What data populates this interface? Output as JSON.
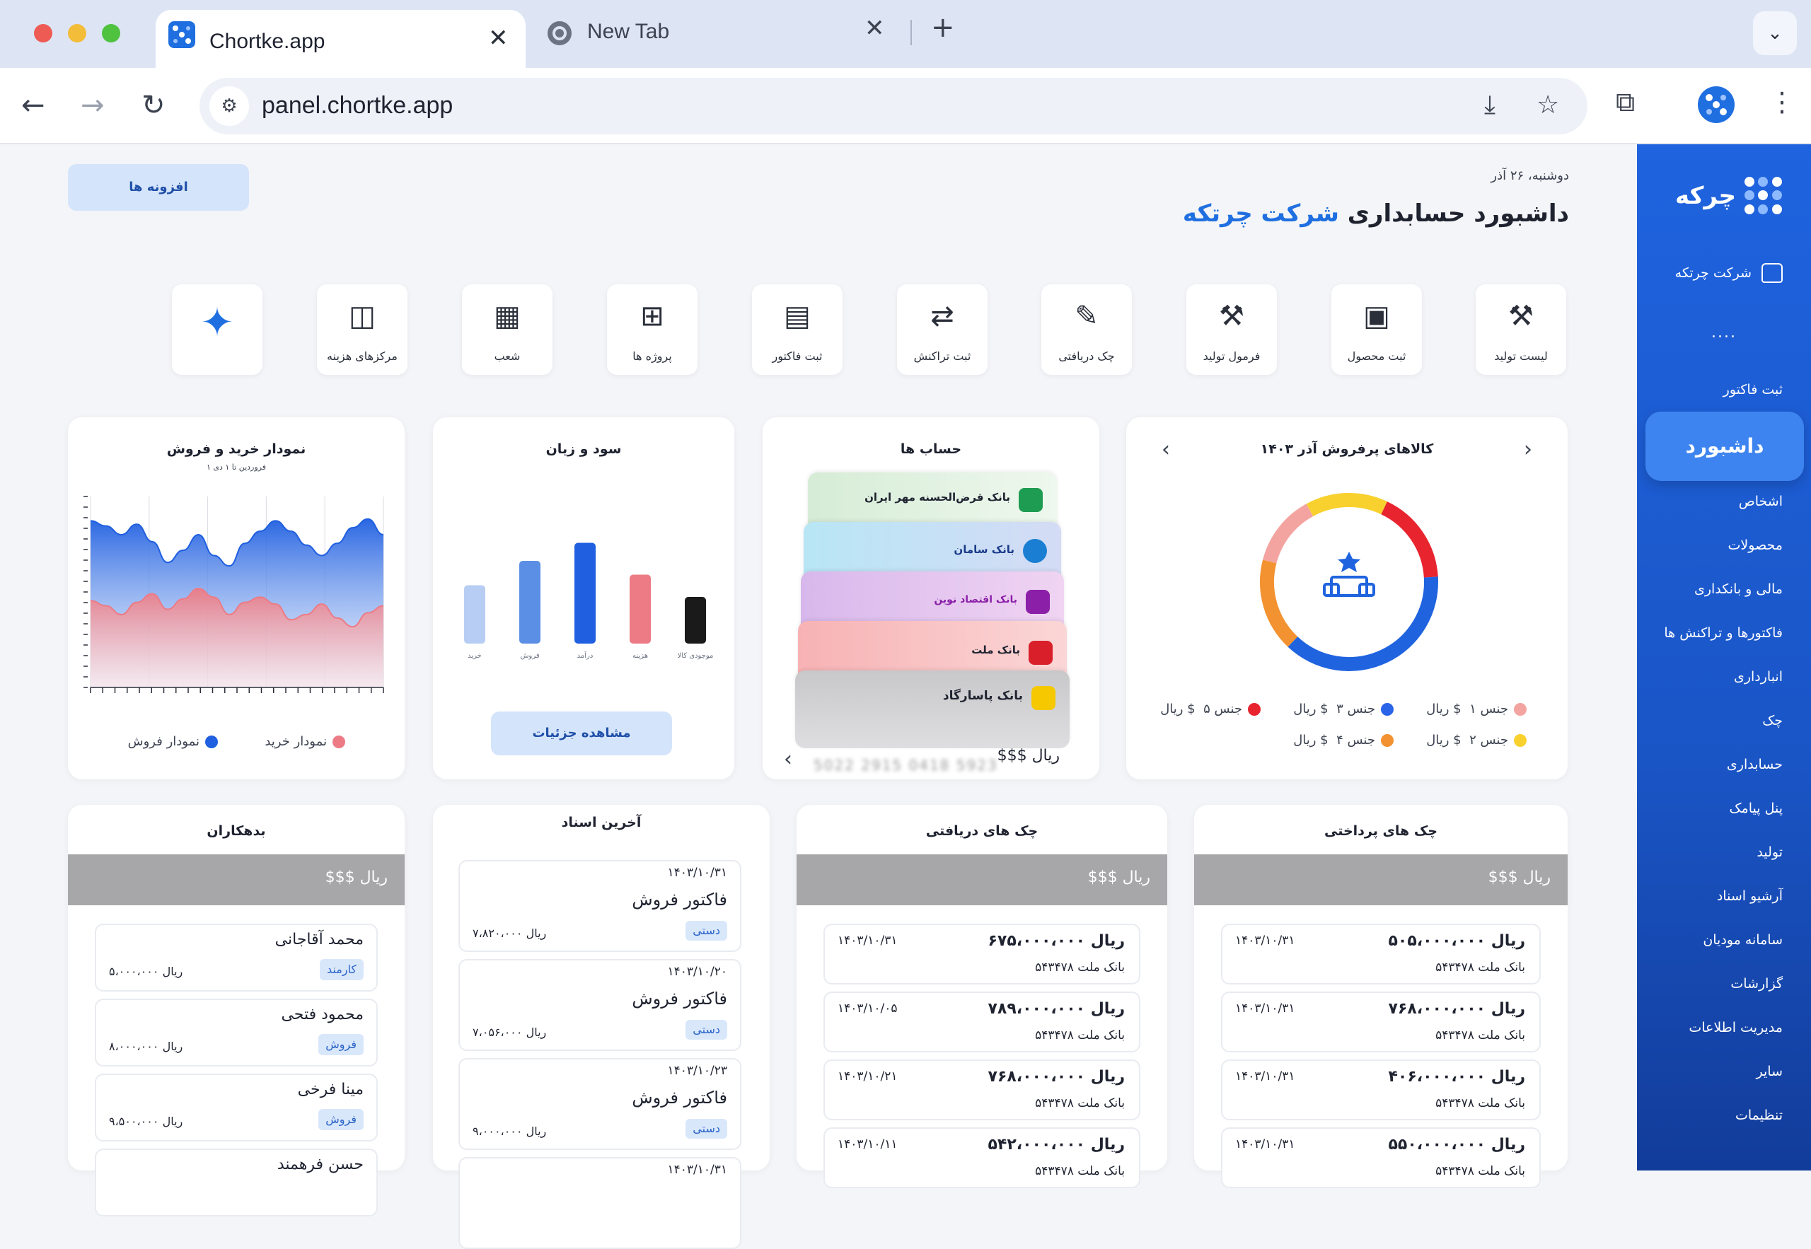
{
  "browser": {
    "active_tab_title": "Chortke.app",
    "inactive_tab_title": "New Tab",
    "url": "panel.chortke.app"
  },
  "sidebar": {
    "logo_text": "چرکه",
    "company": "شرکت چرتکه",
    "more": "....",
    "items": [
      "ثبت فاکتور",
      "داشبورد",
      "اشخاص",
      "محصولات",
      "مالی و بانکداری",
      "فاکتورها و تراکنش ها",
      "انبارداری",
      "چک",
      "حسابداری",
      "پنل پیامک",
      "تولید",
      "آرشیو اسناد",
      "سامانه مودیان",
      "گزارشات",
      "مدیریت اطلاعات",
      "سایر",
      "تنظیمات"
    ]
  },
  "header": {
    "date": "دوشنبه، ۲۶ آذر",
    "title_prefix": "داشبورد حسابداری",
    "title_company": "شرکت چرتکه",
    "addons_button": "افزونه ها"
  },
  "quick_actions": [
    "لیست تولید",
    "ثبت محصول",
    "فرمول تولید",
    "چک دریافتی",
    "ثبت تراکنش",
    "ثبت فاکتور",
    "پروژه ها",
    "شعب",
    "مرکزهای هزینه"
  ],
  "bestsellers": {
    "title": "کالاهای پرفروش آذر ۱۴۰۳",
    "legend": [
      {
        "label": "جنس ۱",
        "value": "$ ریال",
        "color": "#f4a4a0"
      },
      {
        "label": "جنس ۳",
        "value": "$ ریال",
        "color": "#2a64e8"
      },
      {
        "label": "جنس ۵",
        "value": "$ ریال",
        "color": "#e8242f"
      },
      {
        "label": "جنس ۲",
        "value": "$ ریال",
        "color": "#f9d12e"
      },
      {
        "label": "جنس ۴",
        "value": "$ ریال",
        "color": "#f39230"
      }
    ]
  },
  "accounts": {
    "title": "حساب ها",
    "banks": [
      "بانک قرض‌الحسنه مهر ایران",
      "بانک سامان",
      "بانک اقتصاد نوین",
      "بانک ملت",
      "بانک پاسارگاد"
    ],
    "card_number": "5022 2915 0418 5923",
    "balance": "$$$ ریال"
  },
  "profit": {
    "title": "سود و زیان",
    "details_button": "مشاهده جزئیات"
  },
  "buy_sell": {
    "title": "نمودار خرید و فروش",
    "subtitle": "۱ فروردین تا ۱ دی",
    "legend_buy": "نمودار خرید",
    "legend_sell": "نمودار فروش"
  },
  "chart_data": [
    {
      "type": "bar",
      "title": "سود و زیان",
      "categories": [
        "خرید",
        "فروش",
        "درآمد",
        "هزینه",
        "موجودی کالا"
      ],
      "values": [
        55,
        78,
        95,
        65,
        44
      ],
      "colors": [
        "#b8cdf3",
        "#5b8fe6",
        "#1f5fe0",
        "#ec7b85",
        "#1a1a1a"
      ]
    },
    {
      "type": "pie",
      "title": "کالاهای پرفروش آذر ۱۴۰۳",
      "categories": [
        "جنس ۲",
        "جنس ۵",
        "جنس ۳",
        "جنس ۴",
        "جنس ۱"
      ],
      "values": [
        15,
        17,
        38,
        17,
        13
      ],
      "colors": [
        "#f9d12e",
        "#e8242f",
        "#1f63df",
        "#f39230",
        "#f4a4a0"
      ]
    },
    {
      "type": "area",
      "title": "نمودار خرید و فروش",
      "series": [
        {
          "name": "نمودار فروش",
          "values": [
            96,
            93,
            88,
            94,
            84,
            72,
            79,
            88,
            76,
            70,
            83,
            90,
            96,
            90,
            82,
            76,
            83,
            92,
            97,
            88
          ]
        },
        {
          "name": "نمودار خرید",
          "values": [
            50,
            47,
            42,
            49,
            54,
            45,
            51,
            57,
            52,
            42,
            49,
            52,
            48,
            39,
            42,
            48,
            40,
            35,
            43,
            47
          ]
        }
      ],
      "ylim": [
        0,
        110
      ]
    }
  ],
  "debtors": {
    "title": "بدهکاران",
    "total": "$$$ ریال",
    "items": [
      {
        "name": "محمد آقاجانی",
        "tag": "کارمند",
        "amount": "۵،۰۰۰،۰۰۰ ریال"
      },
      {
        "name": "محمود فتحی",
        "tag": "فروش",
        "amount": "۸،۰۰۰،۰۰۰ ریال"
      },
      {
        "name": "مینا فرخی",
        "tag": "فروش",
        "amount": "۹،۵۰۰،۰۰۰ ریال"
      },
      {
        "name": "حسن فرهمند",
        "tag": "",
        "amount": ""
      }
    ]
  },
  "documents": {
    "title": "آخرین اسناد",
    "items": [
      {
        "date": "۱۴۰۳/۱۰/۳۱",
        "title": "فاکتور فروش",
        "tag": "دستی",
        "amount": "۷،۸۲۰،۰۰۰ ریال"
      },
      {
        "date": "۱۴۰۳/۱۰/۲۰",
        "title": "فاکتور فروش",
        "tag": "دستی",
        "amount": "۷،۰۵۶،۰۰۰ ریال"
      },
      {
        "date": "۱۴۰۳/۱۰/۲۳",
        "title": "فاکتور فروش",
        "tag": "دستی",
        "amount": "۹،۰۰۰،۰۰۰ ریال"
      },
      {
        "date": "۱۴۰۳/۱۰/۳۱",
        "title": "",
        "tag": "",
        "amount": ""
      }
    ]
  },
  "received_checks": {
    "title": "چک های دریافتی",
    "total": "$$$ ریال",
    "items": [
      {
        "amount": "۶۷۵،۰۰۰،۰۰۰ ریال",
        "bank": "بانک ملت ۵۴۳۴۷۸",
        "date": "۱۴۰۳/۱۰/۳۱"
      },
      {
        "amount": "۷۸۹،۰۰۰،۰۰۰ ریال",
        "bank": "بانک ملت ۵۴۳۴۷۸",
        "date": "۱۴۰۳/۱۰/۰۵"
      },
      {
        "amount": "۷۶۸،۰۰۰،۰۰۰ ریال",
        "bank": "بانک ملت ۵۴۳۴۷۸",
        "date": "۱۴۰۳/۱۰/۲۱"
      },
      {
        "amount": "۵۴۲،۰۰۰،۰۰۰ ریال",
        "bank": "بانک ملت ۵۴۳۴۷۸",
        "date": "۱۴۰۳/۱۰/۱۱"
      }
    ]
  },
  "paid_checks": {
    "title": "چک های پرداختی",
    "total": "$$$ ریال",
    "items": [
      {
        "amount": "۵۰۵،۰۰۰،۰۰۰ ریال",
        "bank": "بانک ملت ۵۴۳۴۷۸",
        "date": "۱۴۰۳/۱۰/۳۱"
      },
      {
        "amount": "۷۶۸،۰۰۰،۰۰۰ ریال",
        "bank": "بانک ملت ۵۴۳۴۷۸",
        "date": "۱۴۰۳/۱۰/۳۱"
      },
      {
        "amount": "۴۰۶،۰۰۰،۰۰۰ ریال",
        "bank": "بانک ملت ۵۴۳۴۷۸",
        "date": "۱۴۰۳/۱۰/۳۱"
      },
      {
        "amount": "۵۵۰،۰۰۰،۰۰۰ ریال",
        "bank": "بانک ملت ۵۴۳۴۷۸",
        "date": "۱۴۰۳/۱۰/۳۱"
      }
    ]
  }
}
